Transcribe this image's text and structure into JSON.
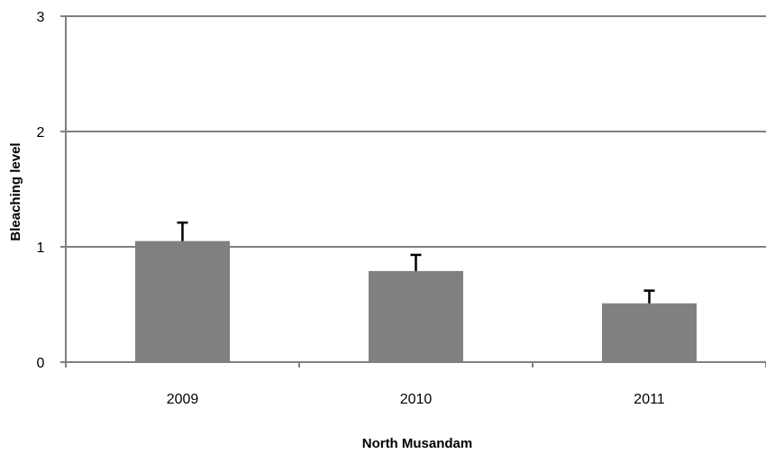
{
  "chart_data": {
    "type": "bar",
    "title": "",
    "xlabel": "North Musandam",
    "ylabel": "Bleaching level",
    "categories": [
      "2009",
      "2010",
      "2011"
    ],
    "values": [
      1.05,
      0.79,
      0.51
    ],
    "error_bars": [
      0.16,
      0.14,
      0.11
    ],
    "ylim": [
      0,
      3
    ],
    "yticks": [
      "0",
      "1",
      "2",
      "3"
    ],
    "grid": true,
    "legend": "none",
    "bar_color": "#808080",
    "grid_color": "#808080",
    "error_bar_color": "#000000"
  }
}
